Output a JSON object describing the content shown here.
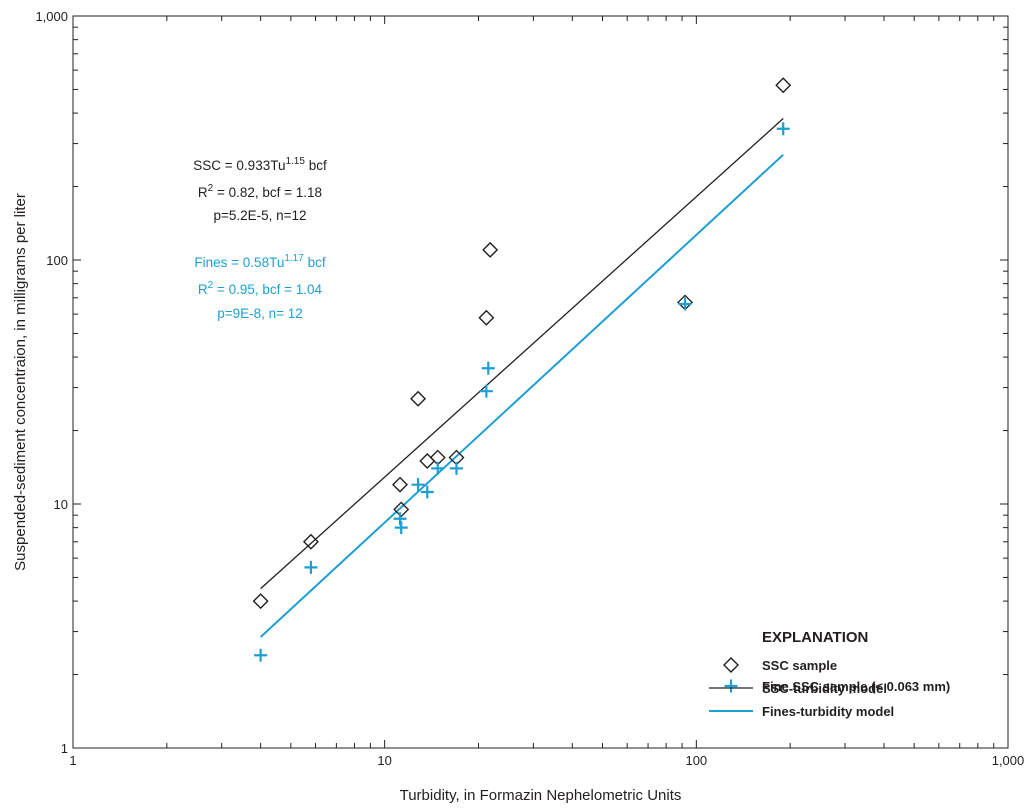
{
  "colors": {
    "ssc": "#231f20",
    "fines": "#1e9fd3"
  },
  "chart_data": {
    "type": "scatter",
    "xlabel": "Turbidity, in Formazin Nephelometric Units",
    "ylabel": "Suspended-sediment concentraion, in milligrams per liter",
    "x_scale": "log",
    "y_scale": "log",
    "xlim": [
      1,
      1000
    ],
    "ylim": [
      1,
      1000
    ],
    "x_ticks": [
      "1",
      "10",
      "100",
      "1,000"
    ],
    "y_ticks": [
      "1",
      "10",
      "100",
      "1,000"
    ],
    "grid": false,
    "series": [
      {
        "name": "SSC sample",
        "marker": "diamond",
        "points": [
          [
            4,
            4
          ],
          [
            5.8,
            7
          ],
          [
            11.3,
            9.5
          ],
          [
            11.2,
            12
          ],
          [
            12.8,
            27
          ],
          [
            13.7,
            15
          ],
          [
            14.8,
            15.5
          ],
          [
            17,
            15.5
          ],
          [
            21.2,
            58
          ],
          [
            21.8,
            110
          ],
          [
            92,
            67
          ],
          [
            190,
            520
          ]
        ]
      },
      {
        "name": "Fine SSC sample (< 0.063 mm)",
        "marker": "plus",
        "points": [
          [
            4,
            2.4
          ],
          [
            5.8,
            5.5
          ],
          [
            11.3,
            8
          ],
          [
            11.2,
            8.7
          ],
          [
            12.8,
            12
          ],
          [
            13.7,
            11.2
          ],
          [
            14.8,
            14
          ],
          [
            17,
            14
          ],
          [
            21.2,
            29
          ],
          [
            21.5,
            36
          ],
          [
            92,
            66
          ],
          [
            190,
            345
          ]
        ]
      },
      {
        "name": "SSC-turbidity model",
        "type": "line",
        "points": [
          [
            4,
            4.5
          ],
          [
            190,
            380
          ]
        ]
      },
      {
        "name": "Fines-turbidity model",
        "type": "line",
        "points": [
          [
            4,
            2.85
          ],
          [
            190,
            270
          ]
        ]
      }
    ],
    "annotations": {
      "ssc": {
        "line1_main": "SSC = 0.933Tu",
        "line1_exp": "1.15",
        "line1_tail": " bcf",
        "line2_pre": "R",
        "line2_sup": "2",
        "line2_post": " = 0.82, bcf = 1.18",
        "line3": "p=5.2E-5, n=12"
      },
      "fines": {
        "line1_main": "Fines = 0.58Tu",
        "line1_exp": "1.17",
        "line1_tail": " bcf",
        "line2_pre": "R",
        "line2_sup": "2",
        "line2_post": " = 0.95, bcf = 1.04",
        "line3": "p=9E-8, n= 12"
      }
    },
    "legend": {
      "title": "EXPLANATION",
      "placement": "bottom-right",
      "items": [
        "SSC sample",
        "Fine SSC sample (< 0.063 mm)",
        "SSC-turbidity model",
        "Fines-turbidity model"
      ]
    }
  }
}
